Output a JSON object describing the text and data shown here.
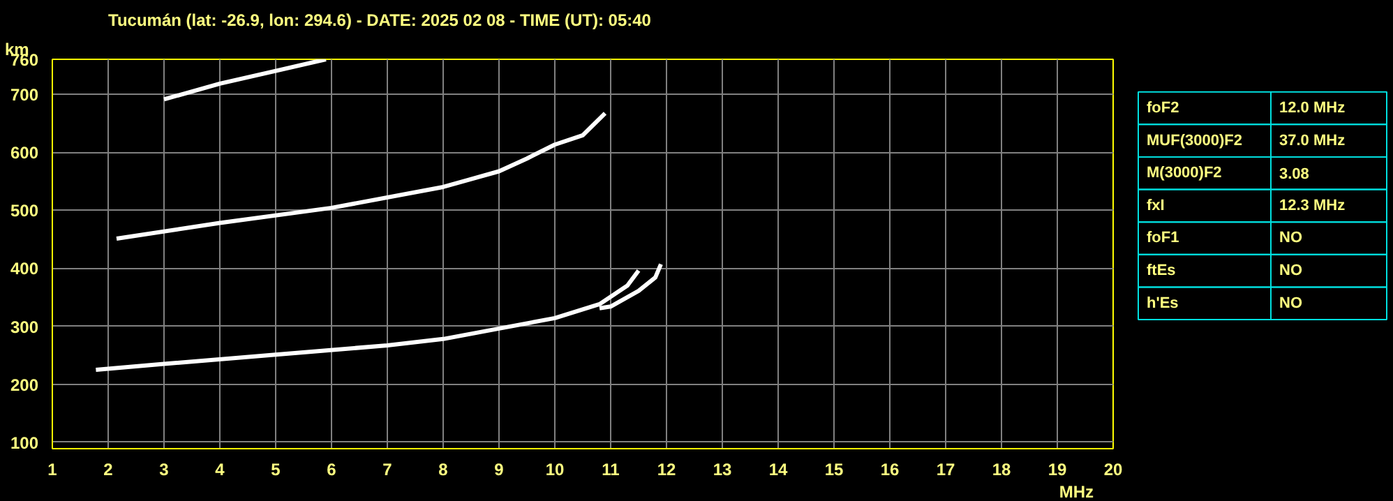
{
  "chart_data": [
    {
      "type": "line",
      "title": "Tucumán (lat: -26.9, lon: 294.6) - DATE: 2025 02 08 - TIME (UT): 05:40",
      "xlabel": "MHz",
      "ylabel": "km",
      "series": [
        {
          "color": "#ffffff",
          "x": [
            1.78,
            3,
            5,
            7,
            8,
            9,
            10,
            10.8,
            11.3,
            11.5
          ],
          "values": [
            225,
            235,
            251,
            267,
            278,
            296,
            314,
            338,
            370,
            396
          ]
        },
        {
          "color": "#ffffff",
          "x": [
            10.8,
            11,
            11.5,
            11.8,
            11.9
          ],
          "values": [
            331,
            334,
            361,
            384,
            407
          ]
        },
        {
          "color": "#ffffff",
          "x": [
            2.15,
            4,
            6,
            8,
            9,
            9.5,
            10,
            10.5,
            10.9
          ],
          "values": [
            451,
            478,
            504,
            540,
            567,
            589,
            613,
            629,
            667
          ]
        },
        {
          "color": "#ffffff",
          "x": [
            3,
            4,
            5,
            5.9
          ],
          "values": [
            691,
            718,
            740,
            760
          ]
        }
      ],
      "xlim": [
        1,
        20
      ],
      "ylim": [
        89,
        760
      ],
      "xticks": [
        1,
        2,
        3,
        4,
        5,
        6,
        7,
        8,
        9,
        10,
        11,
        12,
        13,
        14,
        15,
        16,
        17,
        18,
        19,
        20
      ],
      "yticks": [
        100,
        200,
        300,
        400,
        500,
        600,
        700,
        760
      ],
      "grid": true,
      "marker": "none",
      "line_style": "solid"
    },
    {
      "type": "other",
      "categories": [
        "foF2",
        "MUF(3000)F2",
        "M(3000)F2",
        "fxI",
        "foF1",
        "ftEs",
        "h'Es"
      ],
      "value_labels": [
        "12.0 MHz",
        "37.0 MHz",
        "3.08",
        "12.3 MHz",
        "NO",
        "NO",
        "NO"
      ]
    }
  ]
}
